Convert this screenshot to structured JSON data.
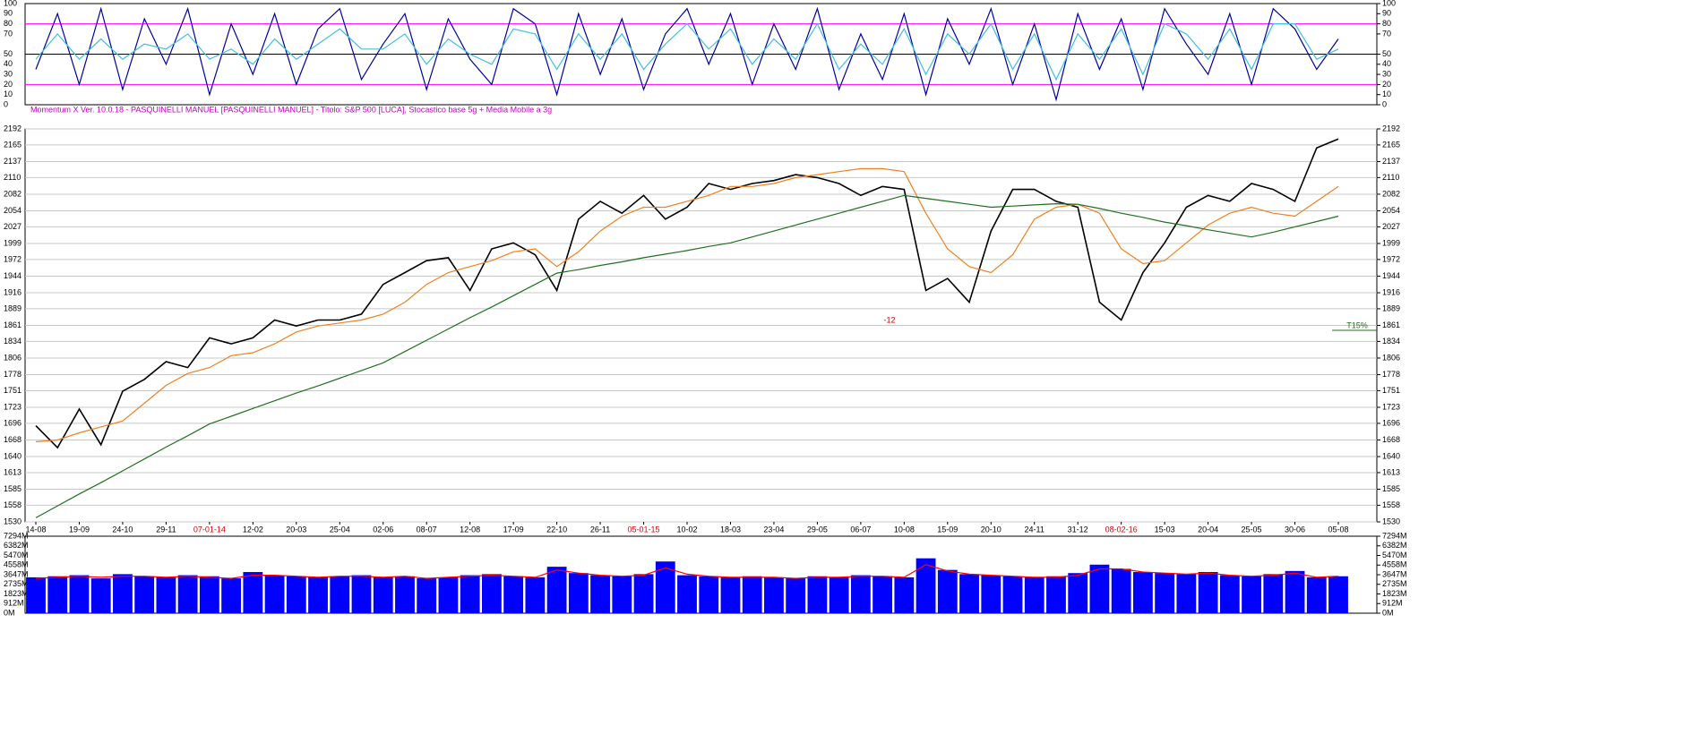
{
  "info_line": "Momentum X  Ver. 10.0.18  -  PASQUINELLI MANUEL  [PASQUINELLI MANUEL] - Titolo: S&P 500  [LUCA],   Stocastico base 5g + Media Mobile a 3g",
  "chart_data": [
    {
      "type": "line",
      "ylim": [
        0,
        100
      ],
      "yticks": [
        0,
        10,
        20,
        30,
        40,
        50,
        70,
        80,
        90,
        100
      ],
      "levels": [
        {
          "value": 80,
          "color": "#ff00ff"
        },
        {
          "value": 50,
          "color": "#000000"
        },
        {
          "value": 20,
          "color": "#ff00ff"
        }
      ],
      "series": [
        {
          "color": "#0000a0",
          "values": [
            35,
            90,
            20,
            95,
            15,
            85,
            40,
            95,
            10,
            80,
            30,
            90,
            20,
            75,
            95,
            25,
            60,
            90,
            15,
            85,
            45,
            20,
            95,
            80,
            10,
            90,
            30,
            85,
            15,
            70,
            95,
            40,
            90,
            20,
            80,
            35,
            95,
            15,
            70,
            25,
            90,
            10,
            85,
            40,
            95,
            20,
            80,
            5,
            90,
            35,
            85,
            15,
            95,
            60,
            30,
            90,
            20,
            95,
            75,
            35,
            65
          ]
        },
        {
          "color": "#40c0e0",
          "values": [
            45,
            70,
            45,
            65,
            45,
            60,
            55,
            70,
            45,
            55,
            40,
            65,
            45,
            60,
            75,
            55,
            55,
            70,
            40,
            65,
            50,
            40,
            75,
            70,
            35,
            70,
            45,
            70,
            35,
            60,
            80,
            55,
            75,
            40,
            65,
            45,
            80,
            35,
            60,
            40,
            75,
            30,
            70,
            50,
            80,
            35,
            70,
            25,
            70,
            45,
            75,
            30,
            80,
            70,
            45,
            75,
            35,
            80,
            80,
            45,
            55
          ]
        }
      ]
    },
    {
      "type": "line",
      "ylim": [
        1530,
        2192
      ],
      "yticks": [
        1530,
        1558,
        1585,
        1613,
        1640,
        1668,
        1696,
        1723,
        1751,
        1778,
        1806,
        1834,
        1861,
        1889,
        1916,
        1944,
        1972,
        1999,
        2027,
        2054,
        2082,
        2110,
        2137,
        2165,
        2192
      ],
      "grid": true,
      "categories": [
        "14-08",
        null,
        "19-09",
        null,
        "24-10",
        null,
        "29-11",
        null,
        "07-01-14",
        null,
        "12-02",
        null,
        "20-03",
        null,
        "25-04",
        null,
        "02-06",
        null,
        "08-07",
        null,
        "12-08",
        null,
        "17-09",
        null,
        "22-10",
        null,
        "26-11",
        null,
        "05-01-15",
        null,
        "10-02",
        null,
        "18-03",
        null,
        "23-04",
        null,
        "29-05",
        null,
        "06-07",
        null,
        "10-08",
        null,
        "15-09",
        null,
        "20-10",
        null,
        "24-11",
        null,
        "31-12",
        null,
        "08-02-16",
        null,
        "15-03",
        null,
        "20-04",
        null,
        "25-05",
        null,
        "30-06",
        null,
        "05-08"
      ],
      "series": [
        {
          "color": "#000000",
          "values": [
            1692,
            1655,
            1720,
            1660,
            1750,
            1770,
            1800,
            1790,
            1840,
            1830,
            1840,
            1870,
            1860,
            1870,
            1870,
            1880,
            1930,
            1950,
            1970,
            1975,
            1920,
            1990,
            2000,
            1980,
            1920,
            2040,
            2070,
            2050,
            2080,
            2040,
            2060,
            2100,
            2090,
            2100,
            2105,
            2115,
            2110,
            2100,
            2080,
            2095,
            2090,
            1920,
            1940,
            1900,
            2020,
            2090,
            2090,
            2070,
            2060,
            1900,
            1870,
            1950,
            2000,
            2060,
            2080,
            2070,
            2100,
            2090,
            2070,
            2160,
            2175
          ]
        },
        {
          "color": "#f08020",
          "values": [
            1665,
            1668,
            1680,
            1690,
            1700,
            1730,
            1760,
            1780,
            1790,
            1810,
            1815,
            1830,
            1850,
            1860,
            1865,
            1870,
            1880,
            1900,
            1930,
            1950,
            1960,
            1970,
            1985,
            1990,
            1960,
            1985,
            2020,
            2045,
            2060,
            2060,
            2070,
            2080,
            2095,
            2095,
            2100,
            2110,
            2115,
            2120,
            2125,
            2125,
            2120,
            2050,
            1990,
            1960,
            1950,
            1980,
            2040,
            2060,
            2065,
            2050,
            1990,
            1965,
            1970,
            2000,
            2030,
            2050,
            2060,
            2050,
            2045,
            2070,
            2095
          ]
        },
        {
          "color": "#207020",
          "values": [
            1537,
            1557,
            1577,
            1596,
            1616,
            1636,
            1656,
            1675,
            1695,
            1708,
            1721,
            1734,
            1747,
            1759,
            1772,
            1785,
            1798,
            1817,
            1836,
            1855,
            1874,
            1892,
            1911,
            1930,
            1949,
            1955,
            1962,
            1968,
            1975,
            1981,
            1987,
            1994,
            2000,
            2010,
            2020,
            2030,
            2040,
            2050,
            2060,
            2070,
            2080,
            2075,
            2070,
            2065,
            2060,
            2062,
            2064,
            2066,
            2065,
            2058,
            2050,
            2043,
            2035,
            2029,
            2022,
            2016,
            2010,
            2018,
            2027,
            2036,
            2045
          ]
        }
      ],
      "annotations": [
        {
          "text": "-12",
          "color": "#cc0000"
        },
        {
          "text": "T15%",
          "color": "#207020"
        }
      ]
    },
    {
      "type": "bar",
      "ylim": [
        0,
        7294
      ],
      "yticks": [
        {
          "value": 0,
          "label": "0M"
        },
        {
          "value": 912,
          "label": "912M"
        },
        {
          "value": 1823,
          "label": "1823M"
        },
        {
          "value": 2735,
          "label": "2735M"
        },
        {
          "value": 3647,
          "label": "3647M"
        },
        {
          "value": 4558,
          "label": "4558M"
        },
        {
          "value": 5470,
          "label": "5470M"
        },
        {
          "value": 6382,
          "label": "6382M"
        },
        {
          "value": 7294,
          "label": "7294M"
        }
      ],
      "series": [
        {
          "color": "#0000ff",
          "values": [
            3400,
            3500,
            3600,
            3300,
            3700,
            3500,
            3400,
            3600,
            3500,
            3300,
            3900,
            3600,
            3500,
            3400,
            3500,
            3600,
            3400,
            3500,
            3300,
            3400,
            3600,
            3700,
            3500,
            3400,
            4400,
            3800,
            3600,
            3500,
            3700,
            4900,
            3600,
            3500,
            3400,
            3500,
            3400,
            3300,
            3500,
            3400,
            3600,
            3500,
            3400,
            5200,
            4100,
            3700,
            3600,
            3500,
            3400,
            3500,
            3800,
            4600,
            4200,
            3900,
            3800,
            3700,
            3900,
            3600,
            3500,
            3700,
            4000,
            3400,
            3500
          ]
        },
        {
          "color": "#ff0000",
          "style": "line",
          "values": [
            3300,
            3400,
            3500,
            3400,
            3500,
            3500,
            3400,
            3500,
            3400,
            3300,
            3600,
            3600,
            3500,
            3400,
            3500,
            3500,
            3400,
            3500,
            3300,
            3400,
            3500,
            3600,
            3500,
            3400,
            4100,
            3800,
            3600,
            3500,
            3600,
            4300,
            3700,
            3500,
            3400,
            3400,
            3400,
            3300,
            3400,
            3400,
            3500,
            3500,
            3400,
            4600,
            4000,
            3700,
            3600,
            3500,
            3400,
            3400,
            3600,
            4200,
            4200,
            3900,
            3800,
            3700,
            3800,
            3600,
            3500,
            3600,
            3800,
            3400,
            3500
          ]
        }
      ]
    }
  ]
}
